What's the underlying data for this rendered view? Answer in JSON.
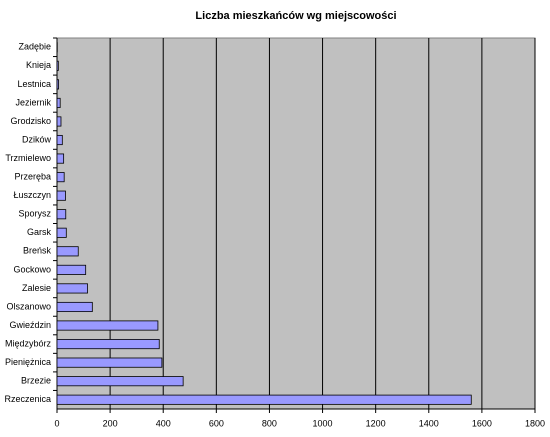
{
  "chart_data": {
    "type": "hbar",
    "title": "Liczba mieszkańców wg miejscowości",
    "categories": [
      "Zadębie",
      "Knieja",
      "Lestnica",
      "Jeziernik",
      "Grodzisko",
      "Dzików",
      "Trzmielewo",
      "Przeręba",
      "Łuszczyn",
      "Sporysz",
      "Garsk",
      "Breńsk",
      "Gockowo",
      "Zalesie",
      "Olszanowo",
      "Gwieździn",
      "Międzybórz",
      "Pieniężnica",
      "Brzezie",
      "Rzeczenica"
    ],
    "values": [
      1,
      5,
      6,
      12,
      15,
      20,
      25,
      27,
      32,
      33,
      35,
      80,
      108,
      115,
      133,
      380,
      385,
      395,
      475,
      1560
    ],
    "color": "#9999ff",
    "xlim": [
      0,
      1800
    ],
    "xticks": [
      0,
      200,
      400,
      600,
      800,
      1000,
      1200,
      1400,
      1600,
      1800
    ],
    "grid": true
  }
}
